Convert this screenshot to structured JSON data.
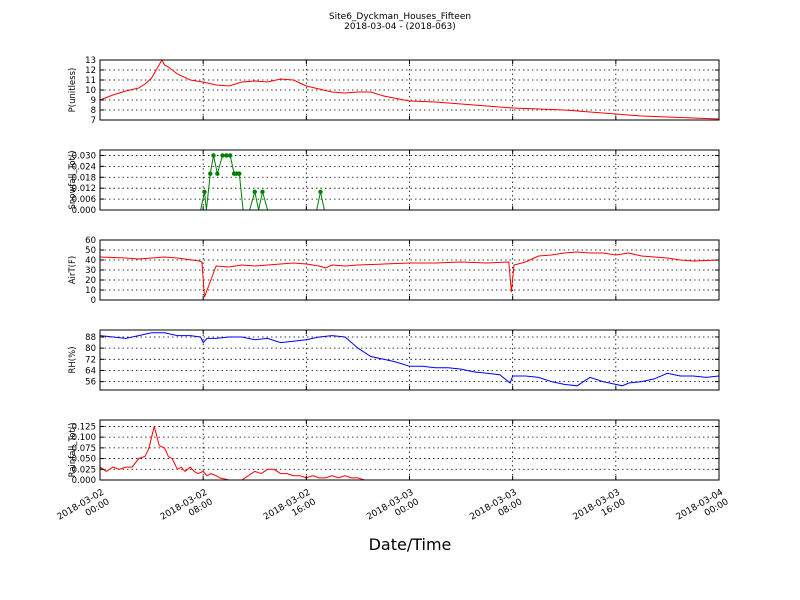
{
  "figure": {
    "title": "Site6_Dyckman_Houses_Fifteen",
    "subtitle": "2018-03-04 - (2018-063)",
    "xlabel": "Date/Time"
  },
  "chart_data": [
    {
      "type": "line",
      "ylabel": "P(unitless)",
      "ylim": [
        7,
        13
      ],
      "yticks": [
        7,
        8,
        9,
        10,
        11,
        12,
        13
      ],
      "ytick_labels": [
        "7",
        "8",
        "9",
        "10",
        "11",
        "12",
        "13"
      ],
      "xlim": [
        0,
        48
      ],
      "grid": true,
      "color": "#ff0000",
      "markers": false,
      "x": [
        0,
        1,
        1.5,
        2,
        3,
        3.5,
        4,
        4.8,
        5,
        5.3,
        5.6,
        6,
        7,
        8,
        9,
        10,
        11,
        12,
        13,
        14,
        15,
        16,
        17,
        18,
        19,
        20,
        21,
        22,
        24,
        26,
        28,
        30,
        32,
        34,
        36,
        38,
        40,
        42,
        44,
        46,
        48
      ],
      "y": [
        9.0,
        9.5,
        9.7,
        9.9,
        10.2,
        10.6,
        11.2,
        13.0,
        12.5,
        12.3,
        12.0,
        11.6,
        11.0,
        10.8,
        10.5,
        10.4,
        10.8,
        10.9,
        10.8,
        11.1,
        11.0,
        10.4,
        10.1,
        9.8,
        9.7,
        9.8,
        9.8,
        9.4,
        8.9,
        8.8,
        8.6,
        8.4,
        8.2,
        8.1,
        8.0,
        7.8,
        7.6,
        7.4,
        7.3,
        7.2,
        7.1
      ]
    },
    {
      "type": "line",
      "ylabel": "Snowfall_Tot()",
      "ylim": [
        0,
        0.033
      ],
      "yticks": [
        0,
        0.006,
        0.012,
        0.018,
        0.024,
        0.03
      ],
      "ytick_labels": [
        "0.000",
        "0.006",
        "0.012",
        "0.018",
        "0.024",
        "0.030"
      ],
      "xlim": [
        0,
        48
      ],
      "grid": true,
      "color": "#008000",
      "markers": true,
      "x": [
        0,
        7.8,
        8.1,
        8.25,
        8.55,
        8.8,
        9.1,
        9.5,
        9.8,
        10.1,
        10.4,
        10.6,
        10.8,
        11.1,
        11.6,
        12.0,
        12.3,
        12.6,
        13.0,
        13.3,
        16.8,
        17.1,
        17.4,
        18,
        48
      ],
      "y": [
        0,
        0,
        0.01,
        0,
        0.02,
        0.03,
        0.02,
        0.03,
        0.03,
        0.03,
        0.02,
        0.02,
        0.02,
        0,
        0,
        0.01,
        0,
        0.01,
        0,
        0,
        0,
        0.01,
        0,
        0,
        0
      ]
    },
    {
      "type": "line",
      "ylabel": "AirT(F)",
      "ylim": [
        0,
        60
      ],
      "yticks": [
        0,
        10,
        20,
        30,
        40,
        50,
        60
      ],
      "ytick_labels": [
        "0",
        "10",
        "20",
        "30",
        "40",
        "50",
        "60"
      ],
      "xlim": [
        0,
        48
      ],
      "grid": true,
      "color": "#ff0000",
      "markers": false,
      "x": [
        0,
        2,
        3,
        4,
        5,
        6,
        7.7,
        7.9,
        8.1,
        9,
        10,
        11,
        12,
        13,
        14,
        15,
        16,
        17,
        17.5,
        18,
        19,
        20,
        22,
        24,
        26,
        28,
        30,
        31.7,
        31.9,
        32.1,
        33,
        34,
        35,
        36,
        37,
        38,
        39,
        40,
        41,
        42,
        43,
        44,
        45,
        46,
        48
      ],
      "y": [
        43,
        42,
        41,
        42,
        43,
        42,
        39,
        38,
        3,
        34,
        33,
        35,
        34,
        35,
        36,
        37,
        36,
        34,
        32,
        35,
        34,
        35,
        36,
        37,
        37,
        38,
        37,
        38,
        8,
        35,
        38,
        44,
        45,
        47,
        48,
        47,
        47,
        45,
        47,
        44,
        43,
        42,
        40,
        39,
        40
      ]
    },
    {
      "type": "line",
      "ylabel": "RH(%)",
      "ylim": [
        50,
        93
      ],
      "yticks": [
        56,
        64,
        72,
        80,
        88
      ],
      "ytick_labels": [
        "56",
        "64",
        "72",
        "80",
        "88"
      ],
      "xlim": [
        0,
        48
      ],
      "grid": true,
      "color": "#0000ff",
      "markers": false,
      "x": [
        0,
        1,
        2,
        3,
        4,
        5,
        6,
        7,
        7.8,
        8.0,
        8.3,
        9,
        10,
        11,
        12,
        13,
        14,
        15,
        16,
        17,
        18,
        19,
        20,
        21,
        22,
        23,
        24,
        25,
        26,
        27,
        28,
        29,
        30,
        31,
        31.8,
        32,
        33,
        34,
        35,
        36,
        37,
        38,
        39,
        40,
        40.5,
        41,
        42,
        43,
        44,
        45,
        46,
        47,
        48
      ],
      "y": [
        89,
        88,
        87,
        89,
        91,
        91,
        89,
        89,
        88,
        84,
        87,
        87,
        88,
        88,
        86,
        87,
        84,
        85,
        86,
        88,
        89,
        88,
        80,
        74,
        72,
        70,
        67,
        67,
        66,
        66,
        65,
        63,
        62,
        61,
        55,
        60,
        60,
        59,
        56,
        54,
        53,
        59,
        56,
        54,
        53,
        55,
        56,
        58,
        62,
        60,
        60,
        59,
        60
      ]
    },
    {
      "type": "line",
      "ylabel": "Rainfall_Tot()",
      "ylim": [
        0,
        0.14
      ],
      "yticks": [
        0,
        0.025,
        0.05,
        0.075,
        0.1,
        0.125
      ],
      "ytick_labels": [
        "0.000",
        "0.025",
        "0.050",
        "0.075",
        "0.100",
        "0.125"
      ],
      "xlim": [
        0,
        48
      ],
      "grid": true,
      "color": "#ff0000",
      "markers": false,
      "x": [
        0,
        0.5,
        1,
        1.5,
        2,
        2.5,
        3,
        3.5,
        3.8,
        4.2,
        4.6,
        5.0,
        5.3,
        5.6,
        6,
        6.3,
        6.6,
        7,
        7.3,
        7.6,
        8,
        8.3,
        8.6,
        9,
        9.3,
        10,
        11,
        11.5,
        12,
        12.5,
        13,
        13.5,
        14,
        14.5,
        15,
        15.5,
        16,
        16.5,
        17,
        17.5,
        18,
        18.5,
        19,
        19.5,
        20,
        20.5,
        21,
        48
      ],
      "y": [
        0.03,
        0.02,
        0.03,
        0.025,
        0.03,
        0.03,
        0.05,
        0.055,
        0.075,
        0.125,
        0.08,
        0.075,
        0.055,
        0.05,
        0.025,
        0.03,
        0.02,
        0.03,
        0.02,
        0.015,
        0.02,
        0.01,
        0.015,
        0.01,
        0.005,
        0,
        0,
        0.01,
        0.02,
        0.015,
        0.025,
        0.025,
        0.015,
        0.015,
        0.01,
        0.01,
        0.005,
        0.01,
        0.005,
        0.005,
        0.01,
        0.005,
        0.01,
        0.005,
        0.005,
        0,
        0,
        0
      ]
    }
  ],
  "x_axis": {
    "ticks": [
      0,
      8,
      16,
      24,
      32,
      40,
      48
    ],
    "tick_labels": [
      [
        "2018-03-02",
        "00:00"
      ],
      [
        "2018-03-02",
        "08:00"
      ],
      [
        "2018-03-02",
        "16:00"
      ],
      [
        "2018-03-03",
        "00:00"
      ],
      [
        "2018-03-03",
        "08:00"
      ],
      [
        "2018-03-03",
        "16:00"
      ],
      [
        "2018-03-04",
        "00:00"
      ]
    ]
  }
}
